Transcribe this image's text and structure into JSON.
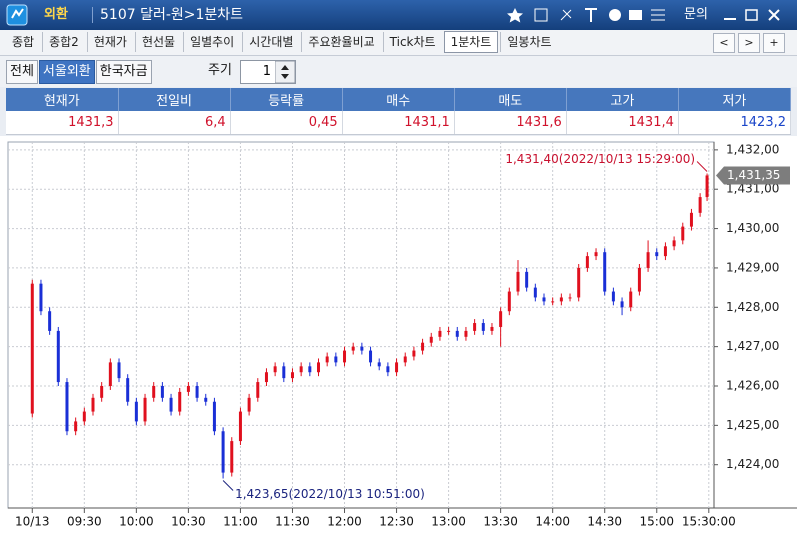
{
  "header": {
    "menu": "외환",
    "title": "5107 달러-원>1분차트",
    "help": "문의"
  },
  "tabs": [
    "종합",
    "종합2",
    "현재가",
    "현선물",
    "일별추이",
    "시간대별",
    "주요환율비교",
    "Tick차트",
    "1분차트",
    "일봉차트"
  ],
  "tab_nav": [
    "<",
    ">",
    "+"
  ],
  "toolbar": {
    "sources": [
      "전체",
      "서울외환",
      "한국자금"
    ],
    "period_label": "주기",
    "period": "1"
  },
  "quote_table": {
    "columns": [
      "현재가",
      "전일비",
      "등락률",
      "매수",
      "매도",
      "고가",
      "저가"
    ],
    "rows": [
      [
        "1431,3",
        "6,4",
        "0,45",
        "1431,1",
        "1431,6",
        "1431,4",
        "1423,2"
      ]
    ]
  },
  "chart_data": {
    "type": "candlestick",
    "x": [
      "09:00",
      "09:05",
      "09:10",
      "09:15",
      "09:20",
      "09:25",
      "09:30",
      "09:35",
      "09:40",
      "09:45",
      "09:50",
      "09:55",
      "10:00",
      "10:05",
      "10:10",
      "10:15",
      "10:20",
      "10:25",
      "10:30",
      "10:35",
      "10:40",
      "10:45",
      "10:50",
      "10:55",
      "11:00",
      "11:05",
      "11:10",
      "11:15",
      "11:20",
      "11:25",
      "11:30",
      "11:35",
      "11:40",
      "11:45",
      "11:50",
      "11:55",
      "12:00",
      "12:05",
      "12:10",
      "12:15",
      "12:20",
      "12:25",
      "12:30",
      "12:35",
      "12:40",
      "12:45",
      "12:50",
      "12:55",
      "13:00",
      "13:05",
      "13:10",
      "13:15",
      "13:20",
      "13:25",
      "13:30",
      "13:35",
      "13:40",
      "13:45",
      "13:50",
      "13:55",
      "14:00",
      "14:05",
      "14:10",
      "14:15",
      "14:20",
      "14:25",
      "14:30",
      "14:35",
      "14:40",
      "14:45",
      "14:50",
      "14:55",
      "15:00",
      "15:05",
      "15:10",
      "15:15",
      "15:20",
      "15:25",
      "15:29"
    ],
    "open": [
      1425.3,
      1428.6,
      1427.9,
      1427.4,
      1426.1,
      1424.85,
      1425.1,
      1425.35,
      1425.7,
      1426.0,
      1426.6,
      1426.2,
      1425.6,
      1425.1,
      1425.7,
      1426.0,
      1425.7,
      1425.35,
      1425.85,
      1426.0,
      1425.7,
      1425.6,
      1424.85,
      1423.8,
      1424.6,
      1425.35,
      1425.7,
      1426.1,
      1426.35,
      1426.5,
      1426.2,
      1426.35,
      1426.5,
      1426.35,
      1426.6,
      1426.75,
      1426.6,
      1426.9,
      1427.0,
      1426.9,
      1426.6,
      1426.5,
      1426.35,
      1426.6,
      1426.75,
      1426.9,
      1427.1,
      1427.25,
      1427.4,
      1427.4,
      1427.25,
      1427.4,
      1427.6,
      1427.4,
      1427.5,
      1427.9,
      1428.4,
      1428.9,
      1428.5,
      1428.25,
      1428.15,
      1428.15,
      1428.25,
      1428.25,
      1429.0,
      1429.3,
      1429.4,
      1428.4,
      1428.15,
      1428.0,
      1428.4,
      1429.0,
      1429.4,
      1429.3,
      1429.55,
      1429.7,
      1430.05,
      1430.4,
      1430.8
    ],
    "high": [
      1428.7,
      1428.7,
      1428.0,
      1427.5,
      1426.2,
      1425.2,
      1425.45,
      1425.8,
      1426.1,
      1426.7,
      1426.7,
      1426.3,
      1425.7,
      1425.8,
      1426.1,
      1426.1,
      1425.8,
      1425.95,
      1426.1,
      1426.1,
      1425.8,
      1425.7,
      1424.95,
      1424.7,
      1425.45,
      1425.8,
      1426.2,
      1426.45,
      1426.6,
      1426.6,
      1426.45,
      1426.6,
      1426.6,
      1426.7,
      1426.85,
      1426.85,
      1427.0,
      1427.1,
      1427.1,
      1427.0,
      1426.7,
      1426.6,
      1426.7,
      1426.85,
      1427.0,
      1427.2,
      1427.35,
      1427.5,
      1427.5,
      1427.5,
      1427.5,
      1427.7,
      1427.7,
      1427.6,
      1428.0,
      1428.5,
      1429.2,
      1429.0,
      1428.6,
      1428.35,
      1428.25,
      1428.35,
      1428.35,
      1429.1,
      1429.4,
      1429.5,
      1429.5,
      1428.5,
      1428.25,
      1428.5,
      1429.1,
      1429.7,
      1429.5,
      1429.65,
      1429.8,
      1430.15,
      1430.5,
      1430.9,
      1431.4
    ],
    "low": [
      1425.2,
      1427.8,
      1427.3,
      1426.0,
      1424.75,
      1424.75,
      1425.0,
      1425.25,
      1425.6,
      1425.9,
      1426.1,
      1425.5,
      1425.0,
      1425.0,
      1425.6,
      1425.6,
      1425.25,
      1425.25,
      1425.75,
      1425.6,
      1425.5,
      1424.75,
      1423.65,
      1423.7,
      1424.5,
      1425.25,
      1425.6,
      1426.0,
      1426.25,
      1426.1,
      1426.1,
      1426.25,
      1426.25,
      1426.25,
      1426.5,
      1426.5,
      1426.5,
      1426.8,
      1426.8,
      1426.5,
      1426.4,
      1426.25,
      1426.25,
      1426.5,
      1426.65,
      1426.8,
      1427.0,
      1427.15,
      1427.3,
      1427.15,
      1427.15,
      1427.3,
      1427.3,
      1427.3,
      1427.0,
      1427.8,
      1428.3,
      1428.4,
      1428.15,
      1428.05,
      1428.05,
      1428.05,
      1428.15,
      1428.15,
      1428.9,
      1429.2,
      1428.3,
      1428.05,
      1427.8,
      1427.9,
      1428.3,
      1428.9,
      1429.2,
      1429.2,
      1429.45,
      1429.6,
      1429.95,
      1430.3,
      1430.7
    ],
    "close": [
      1428.6,
      1427.9,
      1427.4,
      1426.1,
      1424.85,
      1425.1,
      1425.35,
      1425.7,
      1426.0,
      1426.6,
      1426.2,
      1425.6,
      1425.1,
      1425.7,
      1426.0,
      1425.7,
      1425.35,
      1425.85,
      1426.0,
      1425.7,
      1425.6,
      1424.85,
      1423.8,
      1424.6,
      1425.35,
      1425.7,
      1426.1,
      1426.35,
      1426.5,
      1426.2,
      1426.35,
      1426.5,
      1426.35,
      1426.6,
      1426.75,
      1426.6,
      1426.9,
      1427.0,
      1426.9,
      1426.6,
      1426.5,
      1426.35,
      1426.6,
      1426.75,
      1426.9,
      1427.1,
      1427.25,
      1427.4,
      1427.4,
      1427.25,
      1427.4,
      1427.6,
      1427.4,
      1427.5,
      1427.9,
      1428.4,
      1428.9,
      1428.5,
      1428.25,
      1428.15,
      1428.15,
      1428.25,
      1428.25,
      1429.0,
      1429.3,
      1429.4,
      1428.4,
      1428.15,
      1428.0,
      1428.4,
      1429.0,
      1429.4,
      1429.3,
      1429.55,
      1429.7,
      1430.05,
      1430.4,
      1430.8,
      1431.35
    ],
    "up_color": "#e0101e",
    "down_color": "#1a2fd6",
    "xlim": [
      "08:46",
      "15:33"
    ],
    "xticks": [
      {
        "value": "09:00",
        "label": "10/13"
      },
      "09:30",
      "10:00",
      "10:30",
      "11:00",
      "11:30",
      "12:00",
      "12:30",
      "13:00",
      "13:30",
      "14:00",
      "14:30",
      "15:00",
      {
        "value": "15:30",
        "label": "15:30:00"
      }
    ],
    "ylim": [
      1422.9,
      1432.2
    ],
    "yticks": [
      {
        "value": 1424,
        "label": "1,424,00"
      },
      {
        "value": 1425,
        "label": "1,425,00"
      },
      {
        "value": 1426,
        "label": "1,426,00"
      },
      {
        "value": 1427,
        "label": "1,427,00"
      },
      {
        "value": 1428,
        "label": "1,428,00"
      },
      {
        "value": 1429,
        "label": "1,429,00"
      },
      {
        "value": 1430,
        "label": "1,430,00"
      },
      {
        "value": 1431,
        "label": "1,431,00"
      },
      {
        "value": 1432,
        "label": "1,432,00"
      }
    ],
    "grid": true,
    "annotations": [
      {
        "text": "1,431,40(2022/10/13 15:29:00)",
        "color": "#c8102e"
      },
      {
        "text": "1,423,65(2022/10/13 10:51:00)",
        "color": "#1a237e"
      }
    ],
    "last_price_label": "1,431,35"
  }
}
